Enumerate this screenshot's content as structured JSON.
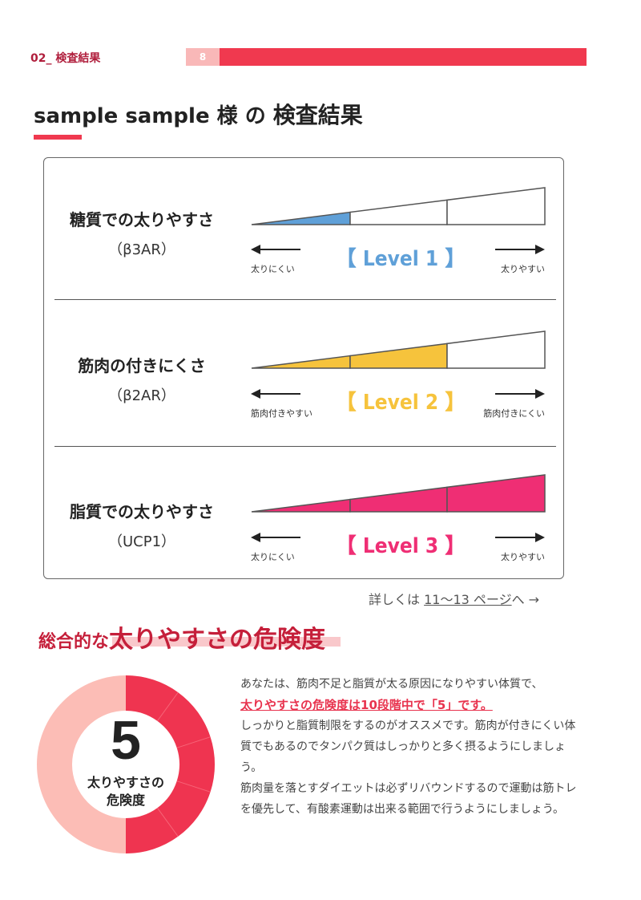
{
  "header": {
    "section": "02_ 検査結果",
    "page_number": "8"
  },
  "title": {
    "prefix": "sample sample 様 の ",
    "main": "検査結果"
  },
  "results": [
    {
      "name": "糖質での太りやすさ",
      "gene": "（β3AR）",
      "level_text": "【 Level 1 】",
      "level": 1,
      "color": "#5fa0d8",
      "left_caption": "太りにくい",
      "right_caption": "太りやすい"
    },
    {
      "name": "筋肉の付きにくさ",
      "gene": "（β2AR）",
      "level_text": "【 Level 2 】",
      "level": 2,
      "color": "#f6c33c",
      "left_caption": "筋肉付きやすい",
      "right_caption": "筋肉付きにくい"
    },
    {
      "name": "脂質での太りやすさ",
      "gene": "（UCP1）",
      "level_text": "【 Level 3 】",
      "level": 3,
      "color": "#ef2e74",
      "left_caption": "太りにくい",
      "right_caption": "太りやすい"
    }
  ],
  "detail_link": {
    "prefix": "詳しくは ",
    "pages": "11〜13 ページ",
    "suffix": "へ →"
  },
  "risk": {
    "heading_small": "総合的な",
    "heading_large": "太りやすさの危険度",
    "score": "5",
    "score_value": 5,
    "score_max": 10,
    "donut_label_1": "太りやすさの",
    "donut_label_2": "危険度",
    "accent_color": "#ef3450",
    "track_color": "#fcbdb6",
    "text_intro": "あなたは、筋肉不足と脂質が太る原因になりやすい体質で、",
    "text_emphasis": "太りやすさの危険度は10段階中で「5」です。",
    "text_body_1": "しっかりと脂質制限をするのがオススメです。筋肉が付きにくい体質でもあるのでタンパク質はしっかりと多く摂るようにしましょう。",
    "text_body_2": "筋肉量を落とすダイエットは必ずリバウンドするので運動は筋トレを優先して、有酸素運動は出来る範囲で行うようにしましょう。"
  }
}
